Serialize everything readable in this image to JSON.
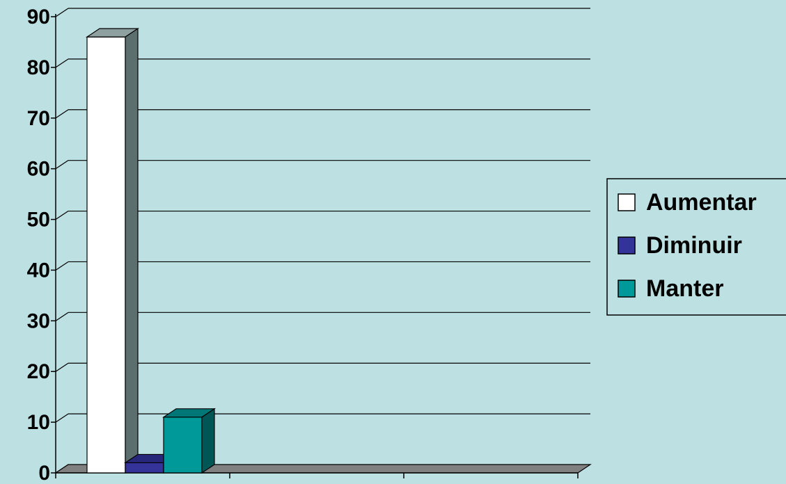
{
  "chart_data": {
    "type": "bar",
    "categories": [
      "",
      "",
      ""
    ],
    "series": [
      {
        "name": "Aumentar",
        "values": [
          86,
          0,
          0
        ],
        "color": "#ffffff",
        "side_color": "#5c6e6e",
        "top_color": "#8fa0a0"
      },
      {
        "name": "Diminuir",
        "values": [
          2,
          0,
          0
        ],
        "color": "#333399",
        "side_color": "#1c1c5c",
        "top_color": "#26267a"
      },
      {
        "name": "Manter",
        "values": [
          11,
          0,
          0
        ],
        "color": "#009999",
        "side_color": "#005555",
        "top_color": "#007777"
      }
    ],
    "yticks": [
      "0",
      "10",
      "20",
      "30",
      "40",
      "50",
      "60",
      "70",
      "80",
      "90"
    ],
    "ylim": [
      0,
      90
    ],
    "grid": true,
    "three_d": true,
    "legend_position": "right",
    "floor_color": "#808080",
    "background": "#bde1e3",
    "title": "",
    "xlabel": "",
    "ylabel": ""
  }
}
